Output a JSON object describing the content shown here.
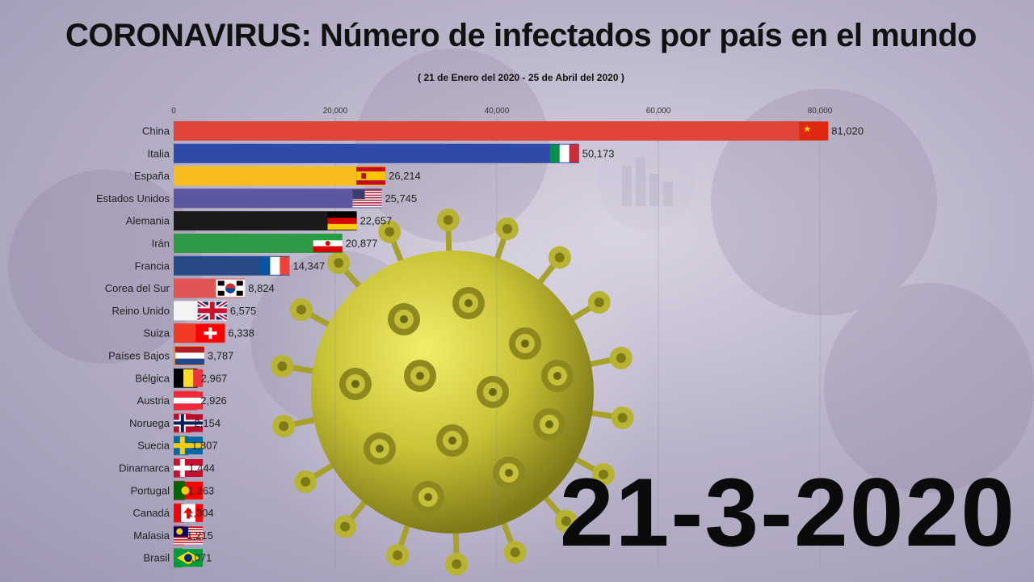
{
  "header": {
    "title": "CORONAVIRUS: Número de infectados por país en el mundo",
    "subtitle": "( 21 de Enero del 2020 - 25 de Abril del 2020 )"
  },
  "date_label": "21-3-2020",
  "chart_data": {
    "type": "bar",
    "orientation": "horizontal",
    "title": "CORONAVIRUS: Número de infectados por país en el mundo",
    "subtitle": "( 21 de Enero del 2020 - 25 de Abril del 2020 )",
    "xlim": [
      0,
      85000
    ],
    "x_ticks": [
      0,
      20000,
      40000,
      60000,
      80000
    ],
    "x_tick_labels": [
      "0",
      "20,000",
      "40,000",
      "60,000",
      "80,000"
    ],
    "grid": true,
    "categories": [
      "China",
      "Italia",
      "España",
      "Estados Unidos",
      "Alemania",
      "Irán",
      "Francia",
      "Corea del Sur",
      "Reino Unido",
      "Suiza",
      "Países Bajos",
      "Bélgica",
      "Austria",
      "Noruega",
      "Suecia",
      "Dinamarca",
      "Portugal",
      "Canadá",
      "Malasia",
      "Brasil"
    ],
    "values": [
      81020,
      50173,
      26214,
      25745,
      22657,
      20877,
      14347,
      8824,
      6575,
      6338,
      3787,
      2967,
      2926,
      2154,
      1807,
      1444,
      1363,
      1304,
      1215,
      1071
    ],
    "value_labels": [
      "81,020",
      "50,173",
      "26,214",
      "25,745",
      "22,657",
      "20,877",
      "14,347",
      "8,824",
      "6,575",
      "6,338",
      "3,787",
      "2,967",
      "2,926",
      "2,154",
      "1,807",
      "1,444",
      "1,363",
      "1,304",
      "1,215",
      "1,071"
    ],
    "colors": [
      "#e0453a",
      "#2f4aa8",
      "#f7bd1c",
      "#5b57a0",
      "#1b1b1b",
      "#2f9a45",
      "#274a86",
      "#e05454",
      "#f4f4f4",
      "#f23b25",
      "#f6822a",
      "#1b1b1b",
      "#ee3a3a",
      "#ee3a3a",
      "#2d6fb6",
      "#e33b3b",
      "#8f3241",
      "#f23b2f",
      "#e8383f",
      "#2b9c4a"
    ],
    "flags": [
      "china",
      "italy",
      "spain",
      "usa",
      "germany",
      "iran",
      "france",
      "korea",
      "uk",
      "switzerland",
      "netherlands",
      "belgium",
      "austria",
      "norway",
      "sweden",
      "denmark",
      "portugal",
      "canada",
      "malaysia",
      "brazil"
    ]
  }
}
